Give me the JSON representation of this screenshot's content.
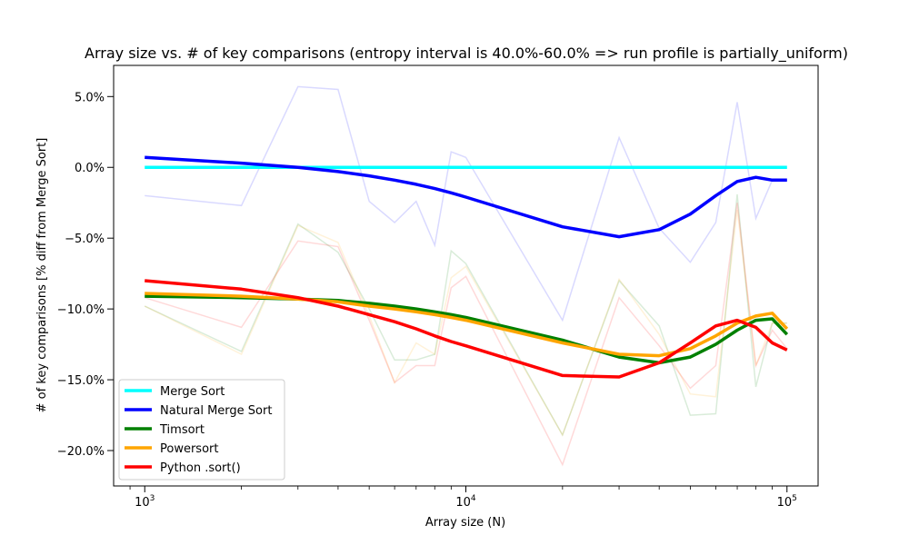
{
  "chart_data": {
    "type": "line",
    "title": "Array size vs. # of key comparisons (entropy interval is 40.0%-60.0% => run profile is partially_uniform)",
    "xlabel": "Array size (N)",
    "ylabel": "# of key comparisons [% diff from Merge Sort]",
    "xscale": "log",
    "xlim": [
      800,
      125000
    ],
    "ylim": [
      -22.5,
      7.2
    ],
    "grid": false,
    "legend_position": "lower-left",
    "x_ticks": [
      {
        "value": 1000,
        "base": "10",
        "exp": "3"
      },
      {
        "value": 10000,
        "base": "10",
        "exp": "4"
      },
      {
        "value": 100000,
        "base": "10",
        "exp": "5"
      }
    ],
    "y_ticks": [
      {
        "value": 5,
        "label": "5.0%"
      },
      {
        "value": 0,
        "label": "0.0%"
      },
      {
        "value": -5,
        "label": "−5.0%"
      },
      {
        "value": -10,
        "label": "−10.0%"
      },
      {
        "value": -15,
        "label": "−15.0%"
      },
      {
        "value": -20,
        "label": "−20.0%"
      }
    ],
    "x": [
      1000,
      2000,
      3000,
      4000,
      5000,
      6000,
      7000,
      8000,
      9000,
      10000,
      20000,
      30000,
      40000,
      50000,
      60000,
      70000,
      80000,
      90000,
      100000
    ],
    "series": [
      {
        "name": "Merge Sort",
        "color": "#00ffff",
        "raw": [
          0,
          0,
          0,
          0,
          0,
          0,
          0,
          0,
          0,
          0,
          0,
          0,
          0,
          0,
          0,
          0,
          0,
          0,
          0
        ],
        "smooth": [
          0,
          0,
          0,
          0,
          0,
          0,
          0,
          0,
          0,
          0,
          0,
          0,
          0,
          0,
          0,
          0,
          0,
          0,
          0
        ]
      },
      {
        "name": "Natural Merge Sort",
        "color": "#0000ff",
        "raw": [
          -2.0,
          -2.7,
          5.7,
          5.5,
          -2.4,
          -3.9,
          -2.4,
          -5.5,
          1.1,
          0.7,
          -10.8,
          2.1,
          -4.3,
          -6.7,
          -3.9,
          4.6,
          -3.6,
          -0.9,
          -0.9
        ],
        "smooth": [
          0.7,
          0.3,
          0.0,
          -0.3,
          -0.6,
          -0.9,
          -1.2,
          -1.5,
          -1.8,
          -2.1,
          -4.2,
          -4.9,
          -4.4,
          -3.3,
          -2.0,
          -1.0,
          -0.7,
          -0.9,
          -0.9
        ]
      },
      {
        "name": "Timsort",
        "color": "#008000",
        "raw": [
          -9.8,
          -13.0,
          -4.0,
          -6.0,
          -10.0,
          -13.6,
          -13.6,
          -13.2,
          -5.9,
          -6.8,
          -18.9,
          -8.0,
          -11.2,
          -17.5,
          -17.4,
          -1.9,
          -15.5,
          -11.0,
          -11.0
        ],
        "smooth": [
          -9.1,
          -9.2,
          -9.3,
          -9.4,
          -9.6,
          -9.8,
          -10.0,
          -10.2,
          -10.4,
          -10.6,
          -12.2,
          -13.4,
          -13.8,
          -13.4,
          -12.5,
          -11.5,
          -10.8,
          -10.7,
          -11.8
        ]
      },
      {
        "name": "Powersort",
        "color": "#ffa500",
        "raw": [
          -9.8,
          -13.2,
          -4.1,
          -5.3,
          -10.5,
          -15.2,
          -12.4,
          -13.2,
          -7.8,
          -7.0,
          -18.9,
          -7.9,
          -11.8,
          -16.0,
          -16.2,
          -3.0,
          -14.0,
          -11.0,
          -11.0
        ],
        "smooth": [
          -8.9,
          -9.1,
          -9.3,
          -9.5,
          -9.8,
          -10.0,
          -10.2,
          -10.4,
          -10.6,
          -10.8,
          -12.4,
          -13.2,
          -13.3,
          -12.8,
          -11.9,
          -11.0,
          -10.5,
          -10.3,
          -11.4
        ]
      },
      {
        "name": "Python .sort()",
        "color": "#ff0000",
        "raw": [
          -9.2,
          -11.3,
          -5.2,
          -5.6,
          -10.8,
          -15.2,
          -14.0,
          -14.0,
          -8.5,
          -7.7,
          -21.0,
          -9.2,
          -12.6,
          -15.6,
          -14.0,
          -2.5,
          -14.0,
          -11.5,
          -12.8
        ],
        "smooth": [
          -8.0,
          -8.6,
          -9.2,
          -9.8,
          -10.4,
          -10.9,
          -11.4,
          -11.9,
          -12.3,
          -12.6,
          -14.7,
          -14.8,
          -13.8,
          -12.4,
          -11.2,
          -10.8,
          -11.3,
          -12.4,
          -12.9
        ]
      }
    ]
  }
}
